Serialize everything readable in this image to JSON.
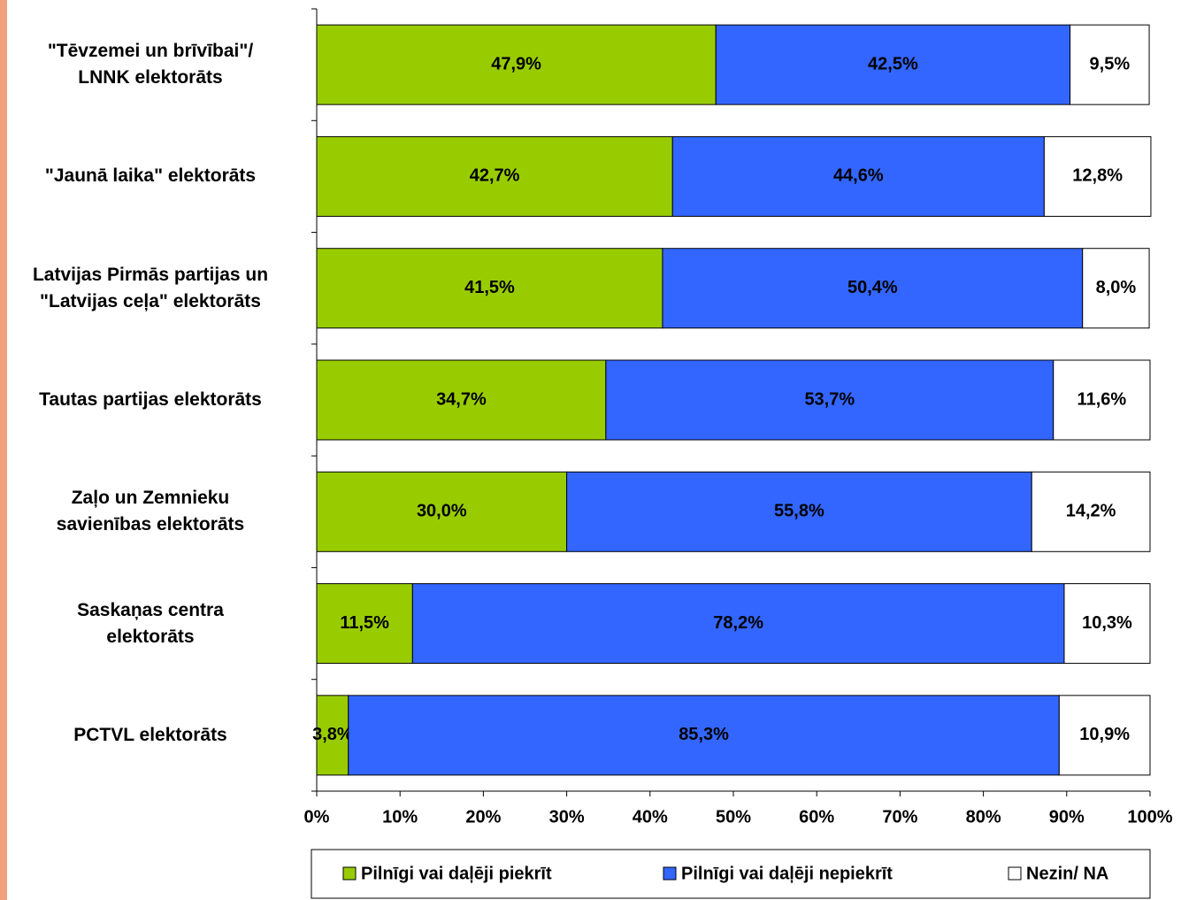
{
  "chart_data": {
    "type": "stacked_bar_horizontal",
    "categories": [
      "\"Tēvzemei un brīvībai\"/\nLNNK elektorāts",
      "\"Jaunā laika\" elektorāts",
      "Latvijas Pirmās partijas un\n\"Latvijas ceļa\" elektorāts",
      "Tautas partijas elektorāts",
      "Zaļo un Zemnieku\nsavienības elektorāts",
      "Saskaņas centra\nelektorāts",
      "PCTVL elektorāts"
    ],
    "series": [
      {
        "name": "Pilnīgi vai daļēji piekrīt",
        "color": "#99cc00",
        "values": [
          47.9,
          42.7,
          41.5,
          34.7,
          30.0,
          11.5,
          3.8
        ],
        "value_labels": [
          "47,9%",
          "42,7%",
          "41,5%",
          "34,7%",
          "30,0%",
          "11,5%",
          "3,8%"
        ]
      },
      {
        "name": "Pilnīgi vai daļēji nepiekrīt",
        "color": "#3366ff",
        "values": [
          42.5,
          44.6,
          50.4,
          53.7,
          55.8,
          78.2,
          85.3
        ],
        "value_labels": [
          "42,5%",
          "44,6%",
          "50,4%",
          "53,7%",
          "55,8%",
          "78,2%",
          "85,3%"
        ]
      },
      {
        "name": "Nezin/ NA",
        "color": "#ffffff",
        "values": [
          9.5,
          12.8,
          8.0,
          11.6,
          14.2,
          10.3,
          10.9
        ],
        "value_labels": [
          "9,5%",
          "12,8%",
          "8,0%",
          "11,6%",
          "14,2%",
          "10,3%",
          "10,9%"
        ]
      }
    ],
    "xlim": [
      0,
      100
    ],
    "xticks": [
      {
        "value": 0,
        "label": "0%"
      },
      {
        "value": 10,
        "label": "10%"
      },
      {
        "value": 20,
        "label": "20%"
      },
      {
        "value": 30,
        "label": "30%"
      },
      {
        "value": 40,
        "label": "40%"
      },
      {
        "value": 50,
        "label": "50%"
      },
      {
        "value": 60,
        "label": "60%"
      },
      {
        "value": 70,
        "label": "70%"
      },
      {
        "value": 80,
        "label": "80%"
      },
      {
        "value": 90,
        "label": "90%"
      },
      {
        "value": 100,
        "label": "100%"
      }
    ],
    "grid": false,
    "legend_position": "bottom"
  }
}
